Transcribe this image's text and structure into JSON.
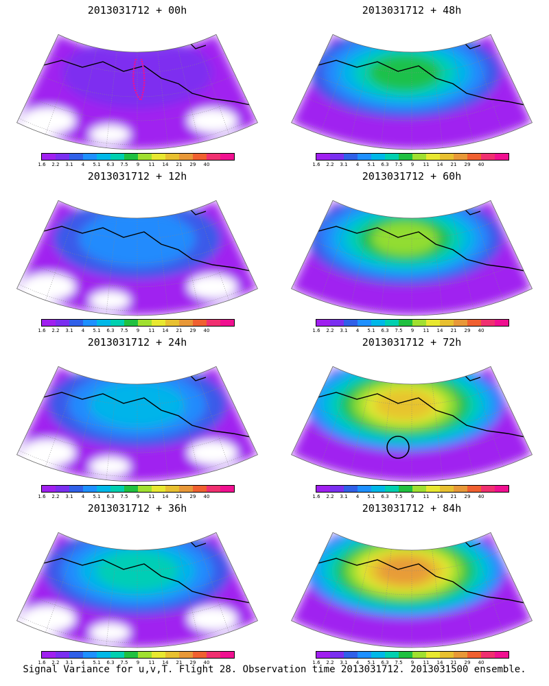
{
  "caption": "Signal Variance for u,v,T. Flight 28. Observation time 2013031712. 2013031500 ensemble.",
  "colorbar": {
    "levels": [
      "1.6",
      "2.2",
      "3.1",
      "4",
      "5.1",
      "6.3",
      "7.5",
      "9",
      "11",
      "14",
      "21",
      "29",
      "40"
    ],
    "colors": [
      "#a020f0",
      "#7a2ff0",
      "#3060e8",
      "#1e90ff",
      "#00b8e8",
      "#00d0b0",
      "#20c040",
      "#a0e030",
      "#e8e830",
      "#e8c030",
      "#e89838",
      "#f06030",
      "#f03070",
      "#f01090"
    ]
  },
  "panels": [
    {
      "title": "2013031712 + 00h",
      "intensity": 0.1,
      "has_track": true,
      "has_circle": false
    },
    {
      "title": "2013031712 + 48h",
      "intensity": 0.6,
      "has_track": false,
      "has_circle": false
    },
    {
      "title": "2013031712 + 12h",
      "intensity": 0.25,
      "has_track": false,
      "has_circle": false
    },
    {
      "title": "2013031712 + 60h",
      "intensity": 0.7,
      "has_track": false,
      "has_circle": false
    },
    {
      "title": "2013031712 + 24h",
      "intensity": 0.35,
      "has_track": false,
      "has_circle": false
    },
    {
      "title": "2013031712 + 72h",
      "intensity": 0.8,
      "has_track": false,
      "has_circle": true
    },
    {
      "title": "2013031712 + 36h",
      "intensity": 0.45,
      "has_track": false,
      "has_circle": false
    },
    {
      "title": "2013031712 + 84h",
      "intensity": 0.9,
      "has_track": false,
      "has_circle": false
    }
  ]
}
